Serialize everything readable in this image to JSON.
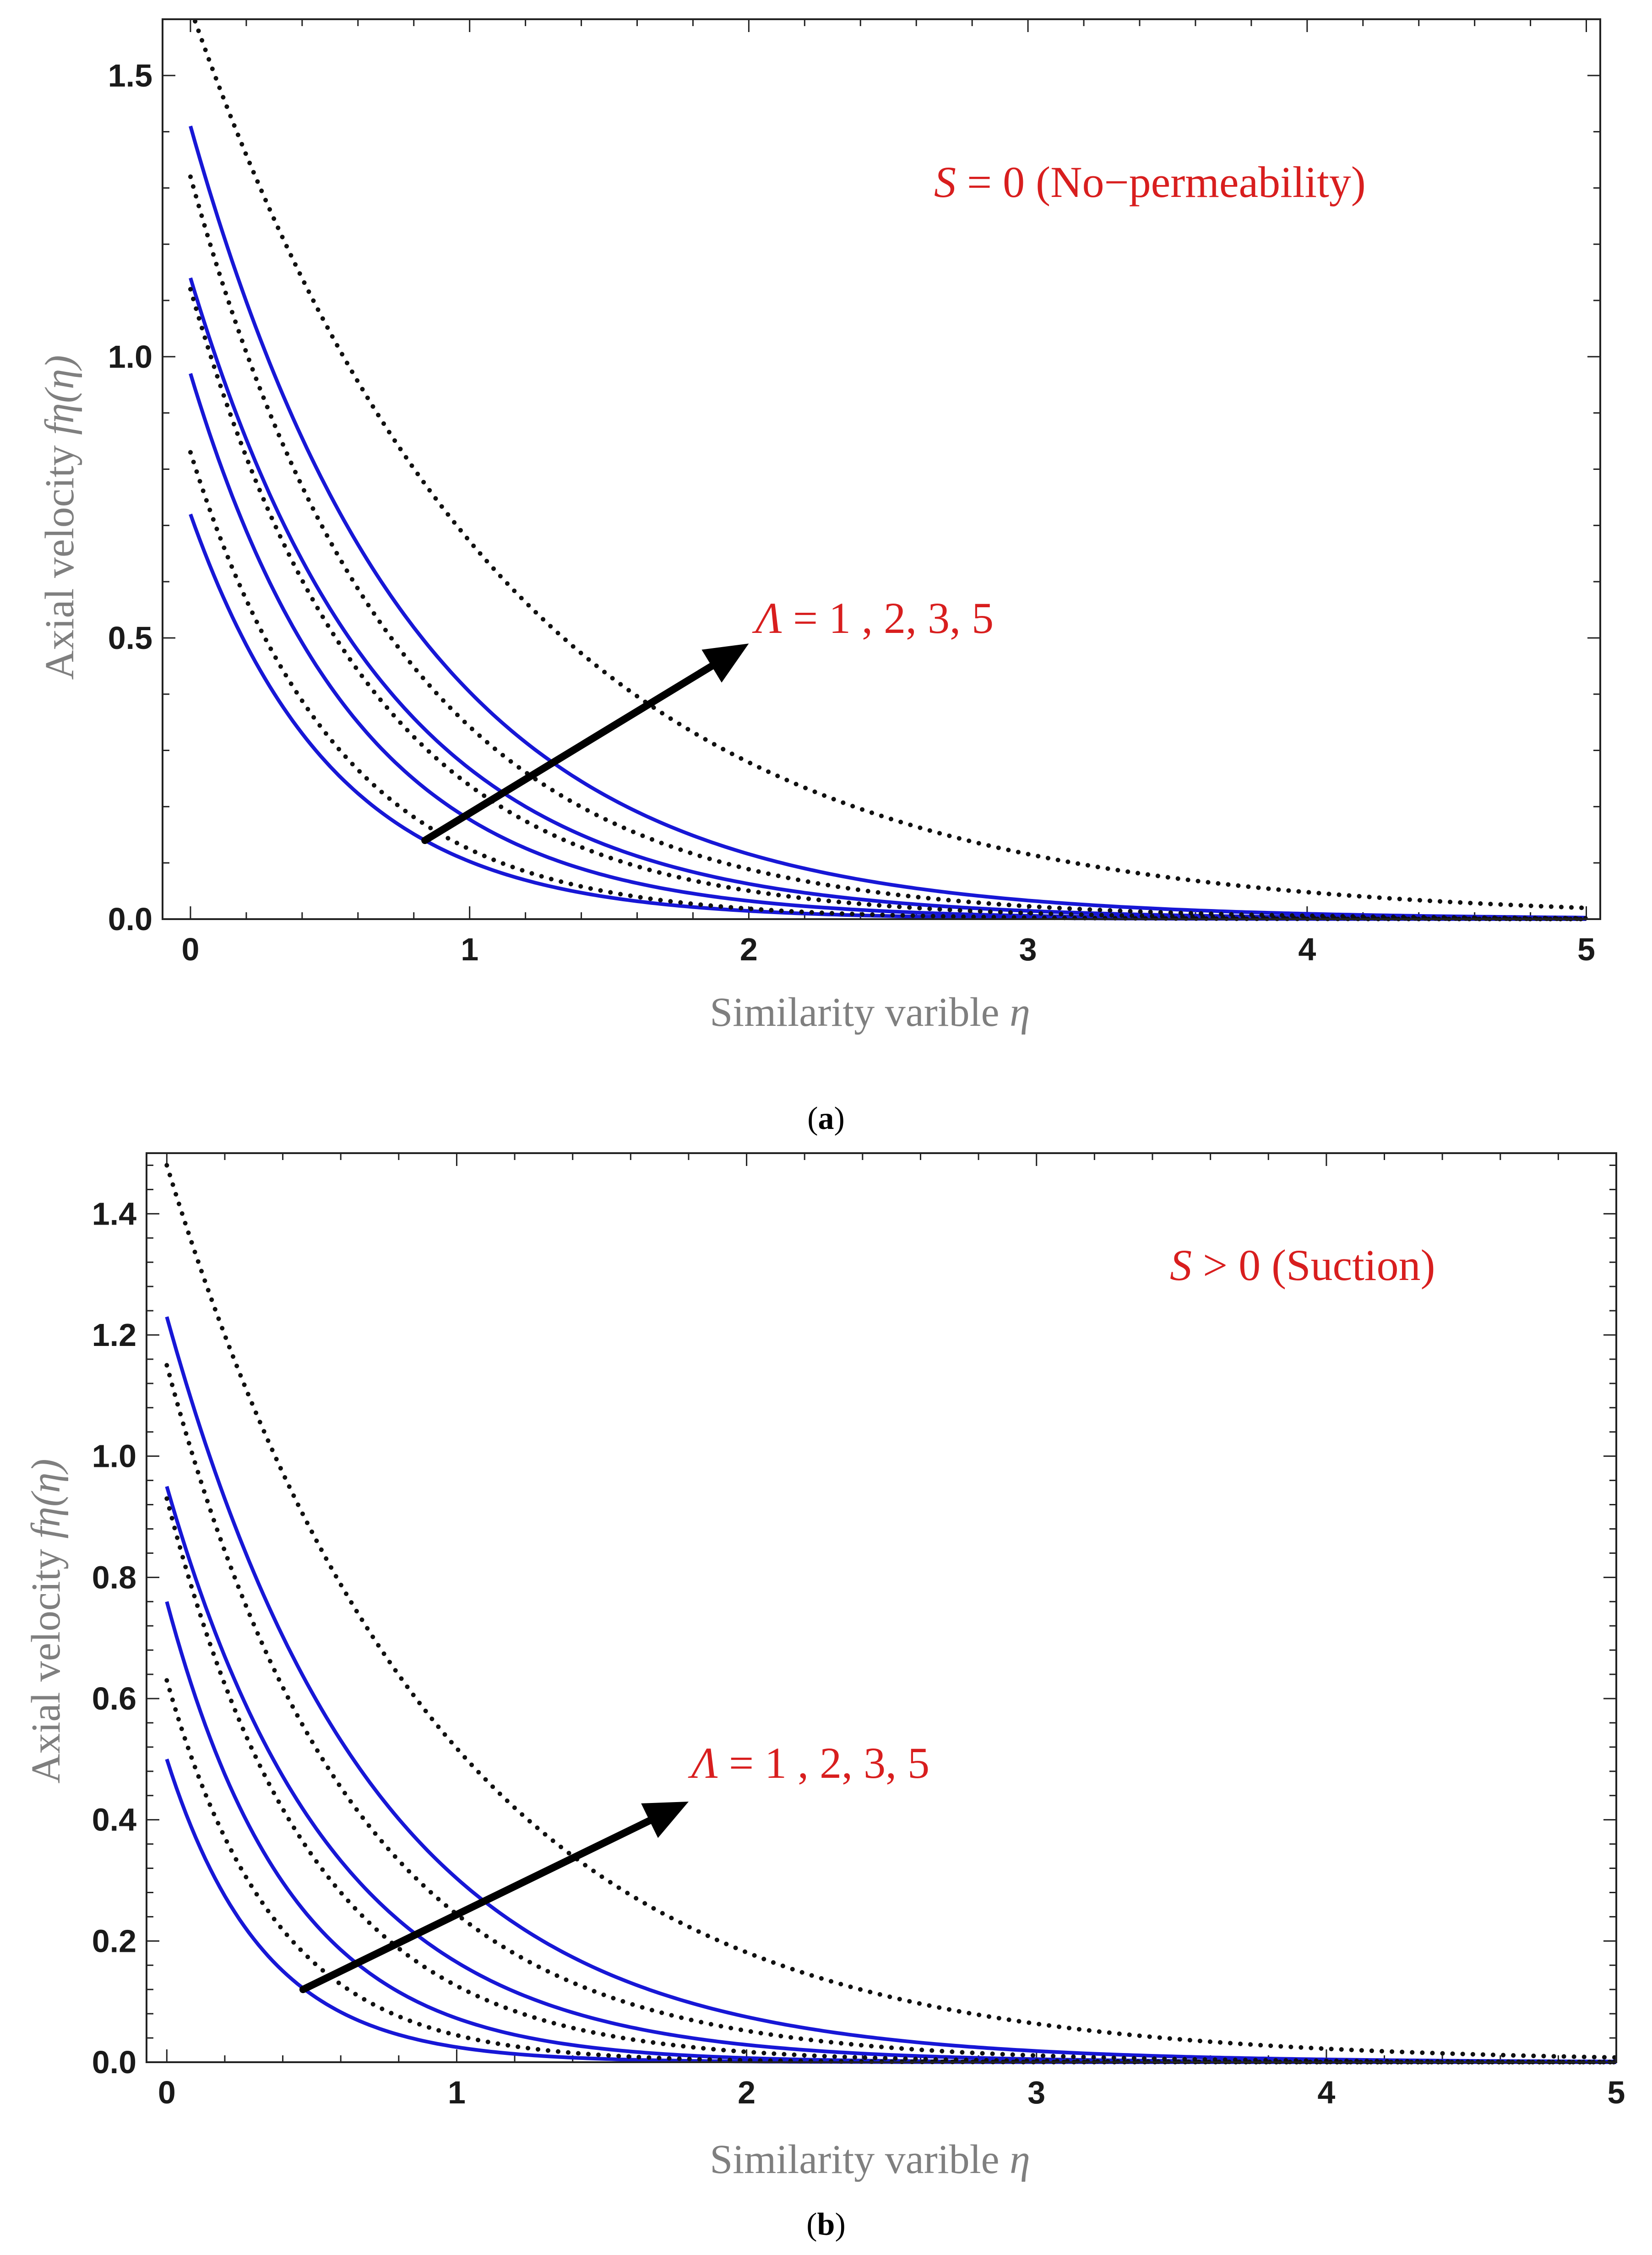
{
  "chart_data": [
    {
      "type": "line",
      "title": "",
      "caption_letter": "a",
      "xlabel_text": "Similarity varible ",
      "xlabel_symbol": "η",
      "ylabel_text": "Axial velocity ",
      "ylabel_symbol": "fη(η)",
      "xlim": [
        -0.1,
        5.05
      ],
      "ylim": [
        0,
        1.6
      ],
      "xticks": [
        0,
        1,
        2,
        3,
        4,
        5
      ],
      "xtick_labels": [
        "0",
        "1",
        "2",
        "3",
        "4",
        "5"
      ],
      "yticks": [
        0,
        0.5,
        1.0,
        1.5
      ],
      "ytick_labels": [
        "0.0",
        "0.5",
        "1.0",
        "1.5"
      ],
      "annotation_condition_symbol": "S",
      "annotation_condition_text": " = 0 (No−permeability)",
      "annotation_param_symbol": "Λ",
      "annotation_param_text": " = 1 , 2,  3, 5",
      "arrow": {
        "from": [
          0.84,
          0.14
        ],
        "to": [
          2.0,
          0.49
        ]
      },
      "series": [
        {
          "name": "Λ = 1",
          "style": "solid",
          "f0": 0.72,
          "k": 1.95
        },
        {
          "name": "Λ = 2",
          "style": "solid",
          "f0": 0.97,
          "k": 1.7
        },
        {
          "name": "Λ = 3",
          "style": "solid",
          "f0": 1.14,
          "k": 1.45
        },
        {
          "name": "Λ = 5",
          "style": "solid",
          "f0": 1.41,
          "k": 1.25
        },
        {
          "name": "Λ = 1",
          "style": "dotted",
          "f0": 0.83,
          "k": 1.9
        },
        {
          "name": "Λ = 2",
          "style": "dotted",
          "f0": 1.12,
          "k": 1.55
        },
        {
          "name": "Λ = 3",
          "style": "dotted",
          "f0": 1.32,
          "k": 1.35
        },
        {
          "name": "Λ = 5",
          "style": "dotted",
          "f0": 1.62,
          "k": 0.88
        }
      ]
    },
    {
      "type": "line",
      "title": "",
      "caption_letter": "b",
      "xlabel_text": "Similarity varible ",
      "xlabel_symbol": "η",
      "ylabel_text": "Axial velocity ",
      "ylabel_symbol": "fη(η)",
      "xlim": [
        -0.07,
        5.0
      ],
      "ylim": [
        0,
        1.5
      ],
      "xticks": [
        0,
        1,
        2,
        3,
        4,
        5
      ],
      "xtick_labels": [
        "0",
        "1",
        "2",
        "3",
        "4",
        "5"
      ],
      "yticks": [
        0,
        0.2,
        0.4,
        0.6,
        0.8,
        1.0,
        1.2,
        1.4
      ],
      "ytick_labels": [
        "0.0",
        "0.2",
        "0.4",
        "0.6",
        "0.8",
        "1.0",
        "1.2",
        "1.4"
      ],
      "annotation_condition_symbol": "S",
      "annotation_condition_text": " > 0 (Suction)",
      "annotation_param_symbol": "Λ",
      "annotation_param_text": " = 1 , 2,  3, 5",
      "arrow": {
        "from": [
          0.47,
          0.12
        ],
        "to": [
          1.8,
          0.43
        ]
      },
      "series": [
        {
          "name": "Λ = 1",
          "style": "solid",
          "f0": 0.5,
          "k": 3.0
        },
        {
          "name": "Λ = 2",
          "style": "solid",
          "f0": 0.76,
          "k": 2.35
        },
        {
          "name": "Λ = 3",
          "style": "solid",
          "f0": 0.95,
          "k": 1.75
        },
        {
          "name": "Λ = 5",
          "style": "solid",
          "f0": 1.23,
          "k": 1.4
        },
        {
          "name": "Λ = 1",
          "style": "dotted",
          "f0": 0.63,
          "k": 2.65
        },
        {
          "name": "Λ = 2",
          "style": "dotted",
          "f0": 0.93,
          "k": 2.0
        },
        {
          "name": "Λ = 3",
          "style": "dotted",
          "f0": 1.15,
          "k": 1.55
        },
        {
          "name": "Λ = 5",
          "style": "dotted",
          "f0": 1.48,
          "k": 1.05
        }
      ]
    }
  ]
}
